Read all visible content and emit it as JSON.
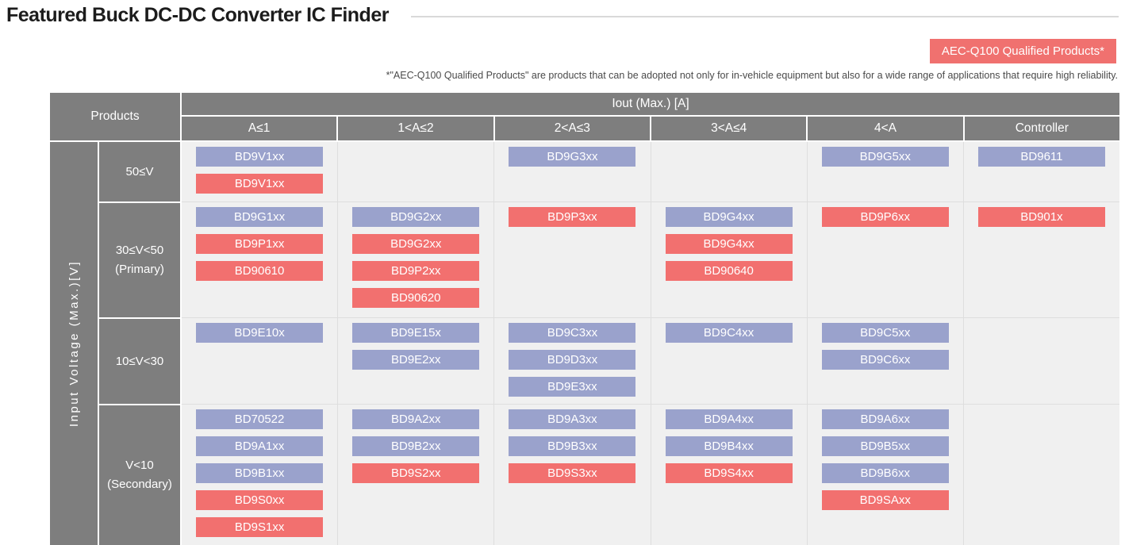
{
  "page": {
    "title": "Featured Buck DC-DC Converter IC Finder",
    "badge_label": "AEC-Q100 Qualified Products*",
    "footnote": "*\"AEC-Q100 Qualified Products\" are products that can be adopted not only for in-vehicle equipment but also for a wide range of applications that require high reliability."
  },
  "colors": {
    "standard_chip": "#9aa2cc",
    "qualified_chip": "#f2706f",
    "header_bg": "#7e7e7e",
    "cell_bg": "#f0f0f0"
  },
  "table": {
    "corner_label": "Products",
    "col_group_label": "Iout (Max.) [A]",
    "row_group_label": "Input Voltage (Max.)[V]",
    "columns": [
      "A≤1",
      "1<A≤2",
      "2<A≤3",
      "3<A≤4",
      "4<A",
      "Controller"
    ],
    "rows": [
      {
        "label": "50≤V",
        "label2": "",
        "cells": [
          [
            {
              "t": "BD9V1xx",
              "q": false
            },
            {
              "t": "BD9V1xx",
              "q": true
            }
          ],
          [],
          [
            {
              "t": "BD9G3xx",
              "q": false
            }
          ],
          [],
          [
            {
              "t": "BD9G5xx",
              "q": false
            }
          ],
          [
            {
              "t": "BD9611",
              "q": false
            }
          ]
        ]
      },
      {
        "label": "30≤V<50",
        "label2": "(Primary)",
        "cells": [
          [
            {
              "t": "BD9G1xx",
              "q": false
            },
            {
              "t": "BD9P1xx",
              "q": true
            },
            {
              "t": "BD90610",
              "q": true
            }
          ],
          [
            {
              "t": "BD9G2xx",
              "q": false
            },
            {
              "t": "BD9G2xx",
              "q": true
            },
            {
              "t": "BD9P2xx",
              "q": true
            },
            {
              "t": "BD90620",
              "q": true
            }
          ],
          [
            {
              "t": "BD9P3xx",
              "q": true
            }
          ],
          [
            {
              "t": "BD9G4xx",
              "q": false
            },
            {
              "t": "BD9G4xx",
              "q": true
            },
            {
              "t": "BD90640",
              "q": true
            }
          ],
          [
            {
              "t": "BD9P6xx",
              "q": true
            }
          ],
          [
            {
              "t": "BD901x",
              "q": true
            }
          ]
        ]
      },
      {
        "label": "10≤V<30",
        "label2": "",
        "cells": [
          [
            {
              "t": "BD9E10x",
              "q": false
            }
          ],
          [
            {
              "t": "BD9E15x",
              "q": false
            },
            {
              "t": "BD9E2xx",
              "q": false
            }
          ],
          [
            {
              "t": "BD9C3xx",
              "q": false
            },
            {
              "t": "BD9D3xx",
              "q": false
            },
            {
              "t": "BD9E3xx",
              "q": false
            }
          ],
          [
            {
              "t": "BD9C4xx",
              "q": false
            }
          ],
          [
            {
              "t": "BD9C5xx",
              "q": false
            },
            {
              "t": "BD9C6xx",
              "q": false
            }
          ],
          []
        ]
      },
      {
        "label": "V<10",
        "label2": "(Secondary)",
        "cells": [
          [
            {
              "t": "BD70522",
              "q": false
            },
            {
              "t": "BD9A1xx",
              "q": false
            },
            {
              "t": "BD9B1xx",
              "q": false
            },
            {
              "t": "BD9S0xx",
              "q": true
            },
            {
              "t": "BD9S1xx",
              "q": true
            }
          ],
          [
            {
              "t": "BD9A2xx",
              "q": false
            },
            {
              "t": "BD9B2xx",
              "q": false
            },
            {
              "t": "BD9S2xx",
              "q": true
            }
          ],
          [
            {
              "t": "BD9A3xx",
              "q": false
            },
            {
              "t": "BD9B3xx",
              "q": false
            },
            {
              "t": "BD9S3xx",
              "q": true
            }
          ],
          [
            {
              "t": "BD9A4xx",
              "q": false
            },
            {
              "t": "BD9B4xx",
              "q": false
            },
            {
              "t": "BD9S4xx",
              "q": true
            }
          ],
          [
            {
              "t": "BD9A6xx",
              "q": false
            },
            {
              "t": "BD9B5xx",
              "q": false
            },
            {
              "t": "BD9B6xx",
              "q": false
            },
            {
              "t": "BD9SAxx",
              "q": true
            }
          ],
          []
        ]
      }
    ]
  }
}
